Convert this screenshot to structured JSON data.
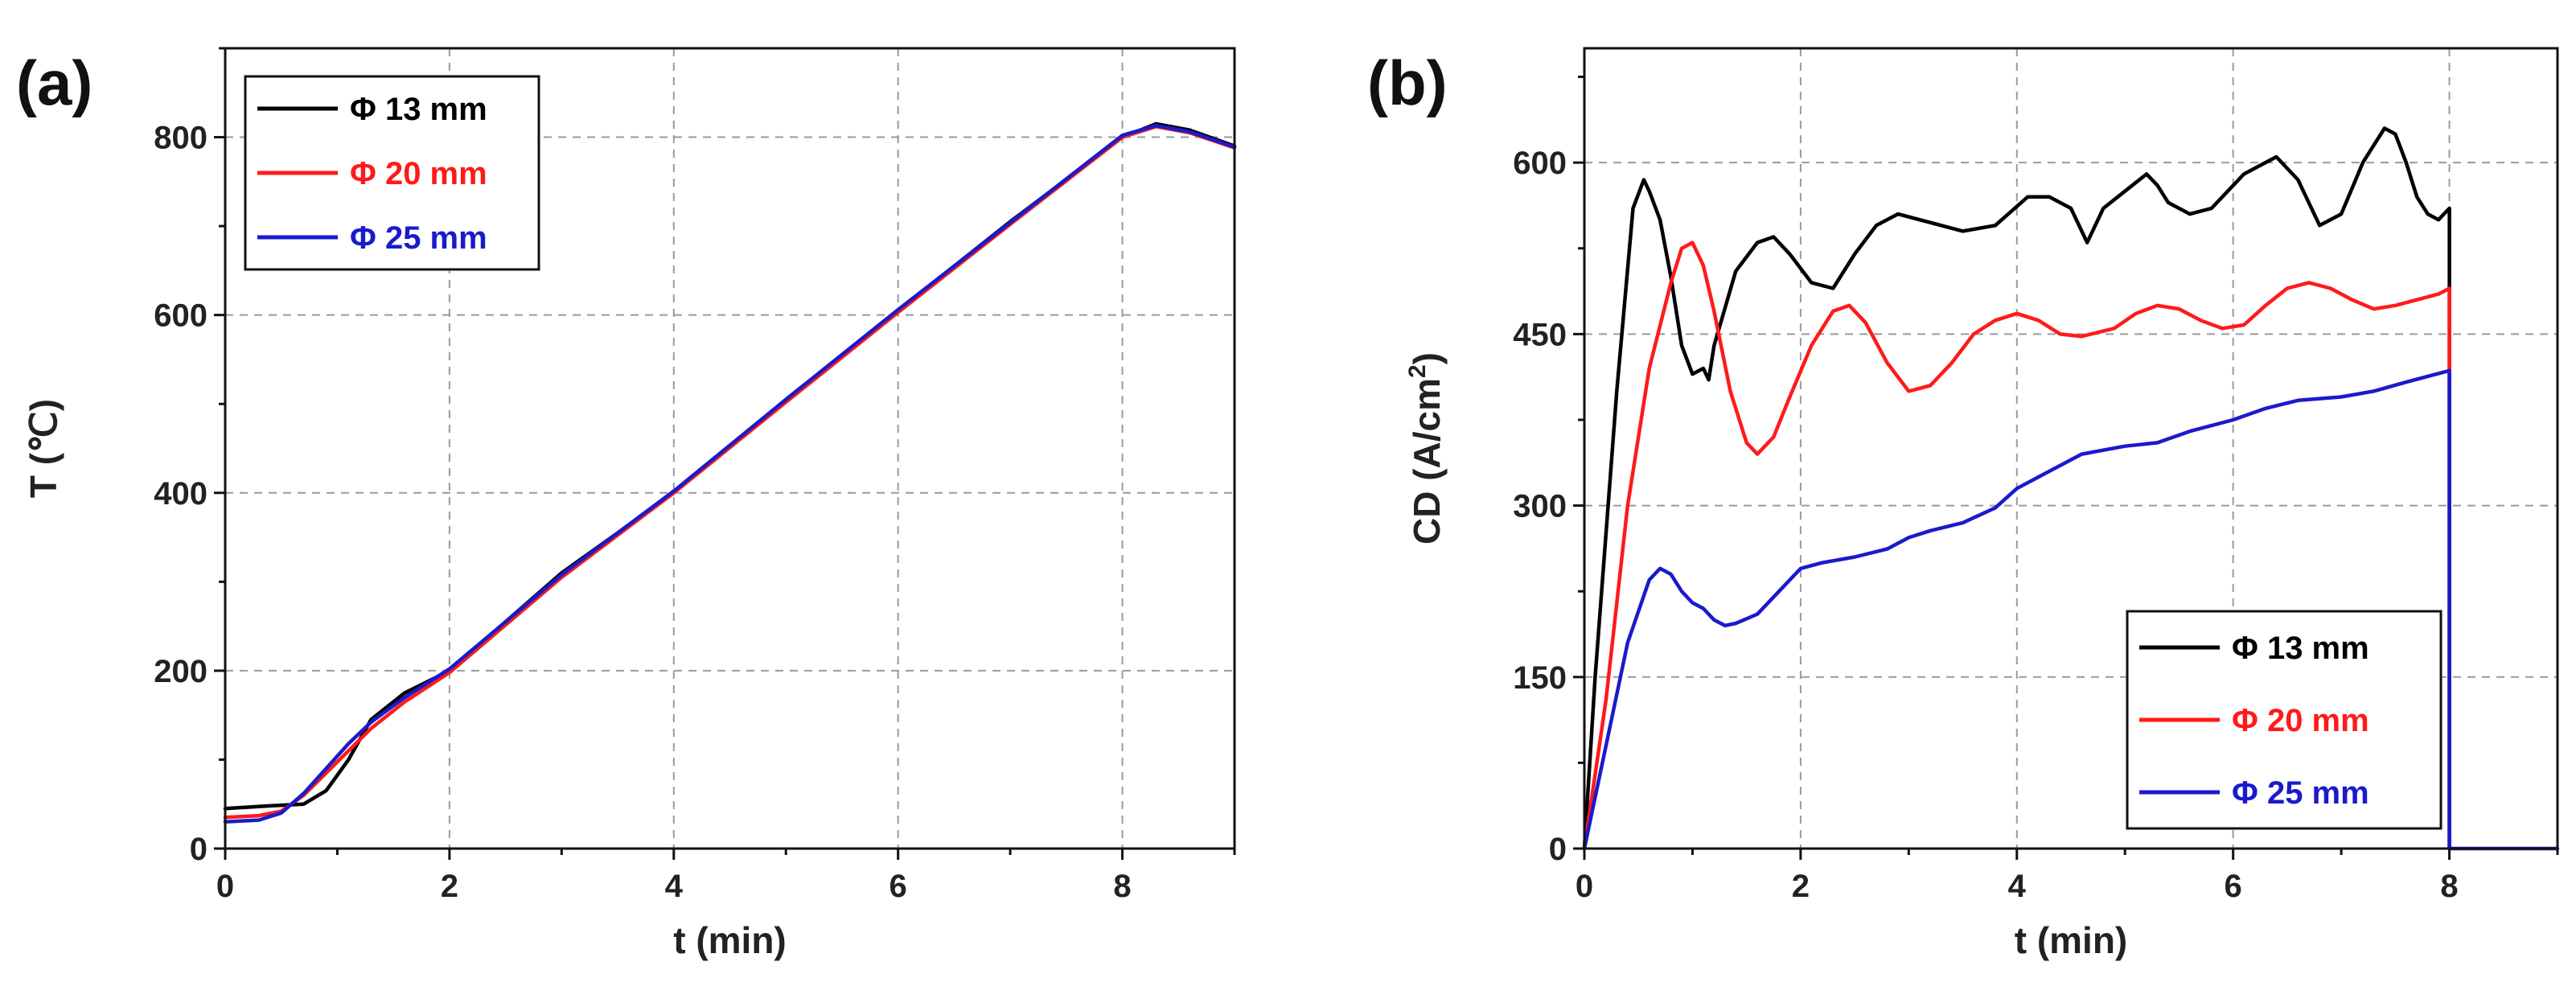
{
  "chart_data": [
    {
      "id": "a",
      "type": "line",
      "panel_label": "(a)",
      "xlabel": "t (min)",
      "ylabel": "T (℃)",
      "xlim": [
        0,
        9
      ],
      "ylim": [
        0,
        900
      ],
      "xticks": [
        0,
        2,
        4,
        6,
        8
      ],
      "yticks": [
        0,
        200,
        400,
        600,
        800
      ],
      "grid": true,
      "legend": {
        "position": "top-left"
      },
      "series": [
        {
          "name": "Φ 13 mm",
          "color": "#000000",
          "x": [
            0,
            0.4,
            0.7,
            0.9,
            1.1,
            1.3,
            1.6,
            2,
            3,
            4,
            5,
            6,
            7,
            8,
            8.3,
            8.6,
            9
          ],
          "y": [
            45,
            48,
            50,
            65,
            100,
            145,
            175,
            200,
            310,
            400,
            505,
            605,
            705,
            800,
            815,
            808,
            790
          ]
        },
        {
          "name": "Φ 20 mm",
          "color": "#ff1a1a",
          "x": [
            0,
            0.3,
            0.5,
            0.7,
            0.9,
            1.1,
            1.3,
            1.6,
            2,
            3,
            4,
            5,
            6,
            7,
            8,
            8.3,
            8.6,
            9
          ],
          "y": [
            35,
            37,
            42,
            60,
            85,
            110,
            135,
            165,
            198,
            305,
            400,
            502,
            603,
            702,
            800,
            812,
            805,
            788
          ]
        },
        {
          "name": "Φ 25 mm",
          "color": "#1a1acc",
          "x": [
            0,
            0.3,
            0.5,
            0.7,
            0.9,
            1.1,
            1.3,
            1.6,
            2,
            3,
            4,
            5,
            6,
            7,
            8,
            8.3,
            8.6,
            9
          ],
          "y": [
            30,
            32,
            40,
            62,
            90,
            118,
            142,
            170,
            202,
            308,
            402,
            505,
            606,
            704,
            802,
            813,
            806,
            789
          ]
        }
      ]
    },
    {
      "id": "b",
      "type": "line",
      "panel_label": "(b)",
      "xlabel": "t (min)",
      "ylabel": "CD (A/cm",
      "ylabel_sup": "2",
      "ylabel_end": ")",
      "xlim": [
        0,
        9
      ],
      "ylim": [
        0,
        700
      ],
      "xticks": [
        0,
        2,
        4,
        6,
        8
      ],
      "yticks": [
        0,
        150,
        300,
        450,
        600
      ],
      "grid": true,
      "legend": {
        "position": "bottom-right"
      },
      "series": [
        {
          "name": "Φ 13 mm",
          "color": "#000000",
          "x": [
            0,
            0.1,
            0.3,
            0.45,
            0.55,
            0.6,
            0.7,
            0.8,
            0.9,
            1.0,
            1.1,
            1.15,
            1.2,
            1.4,
            1.6,
            1.75,
            1.9,
            2.1,
            2.3,
            2.5,
            2.7,
            2.9,
            3.1,
            3.3,
            3.5,
            3.8,
            4.1,
            4.3,
            4.5,
            4.65,
            4.8,
            5.0,
            5.2,
            5.3,
            5.4,
            5.6,
            5.8,
            6.1,
            6.4,
            6.6,
            6.8,
            7.0,
            7.2,
            7.4,
            7.5,
            7.6,
            7.7,
            7.8,
            7.9,
            8.0,
            8.0
          ],
          "y": [
            0,
            150,
            400,
            560,
            585,
            575,
            550,
            500,
            440,
            415,
            420,
            410,
            440,
            505,
            530,
            535,
            520,
            495,
            490,
            520,
            545,
            555,
            550,
            545,
            540,
            545,
            570,
            570,
            560,
            530,
            560,
            575,
            590,
            580,
            565,
            555,
            560,
            590,
            605,
            585,
            545,
            555,
            600,
            630,
            625,
            600,
            570,
            555,
            550,
            560,
            0
          ]
        },
        {
          "name": "Φ 20 mm",
          "color": "#ff1a1a",
          "x": [
            0,
            0.2,
            0.4,
            0.6,
            0.8,
            0.9,
            1.0,
            1.1,
            1.2,
            1.35,
            1.5,
            1.6,
            1.75,
            1.9,
            2.1,
            2.3,
            2.45,
            2.6,
            2.8,
            3.0,
            3.2,
            3.4,
            3.6,
            3.8,
            4.0,
            4.2,
            4.4,
            4.6,
            4.9,
            5.1,
            5.3,
            5.5,
            5.7,
            5.9,
            6.1,
            6.3,
            6.5,
            6.7,
            6.9,
            7.1,
            7.3,
            7.5,
            7.7,
            7.9,
            8.0,
            8.0
          ],
          "y": [
            0,
            130,
            300,
            420,
            495,
            525,
            530,
            510,
            470,
            400,
            355,
            345,
            360,
            395,
            440,
            470,
            475,
            460,
            425,
            400,
            405,
            425,
            450,
            462,
            468,
            462,
            450,
            448,
            455,
            468,
            475,
            472,
            462,
            455,
            458,
            475,
            490,
            495,
            490,
            480,
            472,
            475,
            480,
            485,
            490,
            0
          ]
        },
        {
          "name": "Φ 25 mm",
          "color": "#1a1acc",
          "x": [
            0,
            0.2,
            0.4,
            0.6,
            0.7,
            0.8,
            0.9,
            1.0,
            1.1,
            1.2,
            1.3,
            1.4,
            1.6,
            1.8,
            2.0,
            2.2,
            2.5,
            2.8,
            3.0,
            3.2,
            3.5,
            3.8,
            4.0,
            4.3,
            4.6,
            5.0,
            5.3,
            5.6,
            6.0,
            6.3,
            6.6,
            7.0,
            7.3,
            7.6,
            8.0,
            8.0,
            8.3,
            9.0
          ],
          "y": [
            0,
            90,
            180,
            235,
            245,
            240,
            225,
            215,
            210,
            200,
            195,
            197,
            205,
            225,
            245,
            250,
            255,
            262,
            272,
            278,
            285,
            298,
            315,
            330,
            345,
            352,
            355,
            365,
            375,
            385,
            392,
            395,
            400,
            408,
            418,
            0,
            0,
            0
          ]
        }
      ]
    }
  ]
}
